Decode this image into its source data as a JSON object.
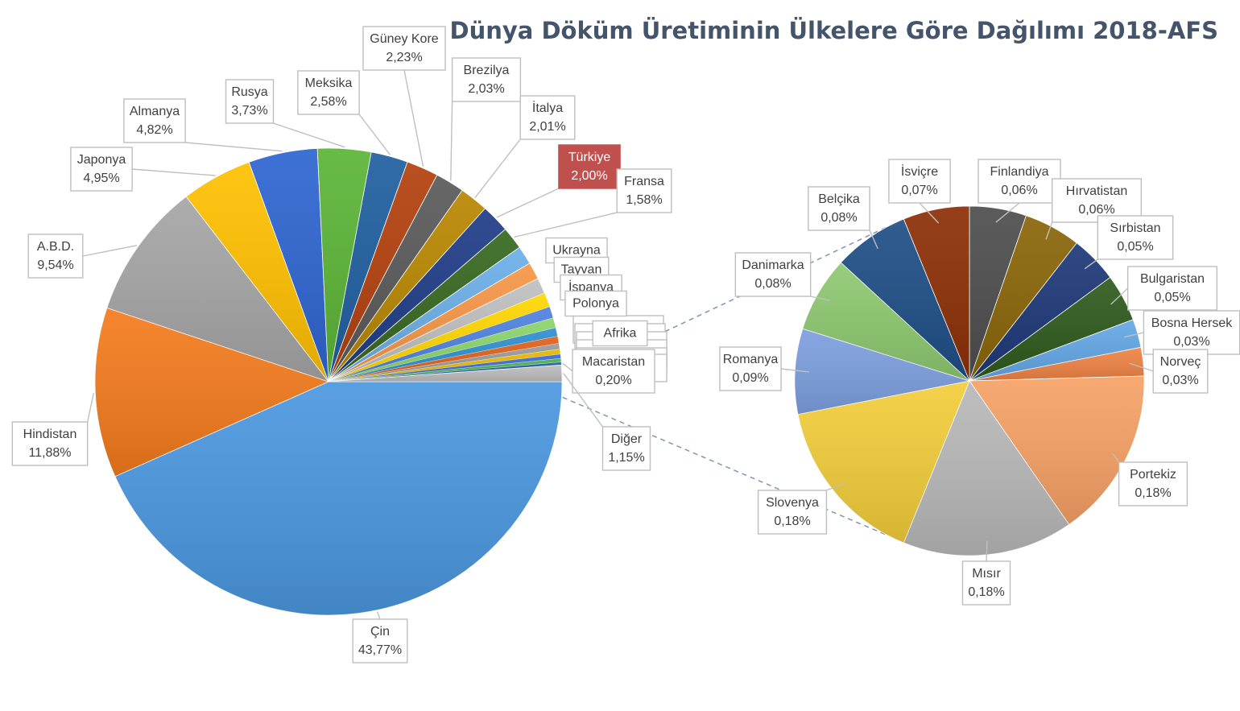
{
  "chart_data": {
    "type": "pie",
    "title": "Dünya Döküm Üretiminin Ülkelere Göre Dağılımı 2018-AFS",
    "main_pie": {
      "slices": [
        {
          "label": "Çin",
          "value_text": "43,77%",
          "value": 43.77,
          "color": "#4a97df",
          "label_side": "bottom"
        },
        {
          "label": "Hindistan",
          "value_text": "11,88%",
          "value": 11.88,
          "color": "#f47b1c",
          "label_side": "left"
        },
        {
          "label": "A.B.D.",
          "value_text": "9,54%",
          "value": 9.54,
          "color": "#a5a5a5",
          "label_side": "left"
        },
        {
          "label": "Japonya",
          "value_text": "4,95%",
          "value": 4.95,
          "color": "#ffc000",
          "label_side": "left"
        },
        {
          "label": "Almanya",
          "value_text": "4,82%",
          "value": 4.82,
          "color": "#2e65d1",
          "label_side": "top"
        },
        {
          "label": "Rusya",
          "value_text": "3,73%",
          "value": 3.73,
          "color": "#5bb436",
          "label_side": "top"
        },
        {
          "label": "Meksika",
          "value_text": "2,58%",
          "value": 2.58,
          "color": "#1f5fa0",
          "label_side": "top"
        },
        {
          "label": "Güney Kore",
          "value_text": "2,23%",
          "value": 2.23,
          "color": "#b3400d",
          "label_side": "top"
        },
        {
          "label": "Brezilya",
          "value_text": "2,03%",
          "value": 2.03,
          "color": "#595959",
          "label_side": "top"
        },
        {
          "label": "İtalya",
          "value_text": "2,01%",
          "value": 2.01,
          "color": "#b88600",
          "label_side": "top"
        },
        {
          "label": "Türkiye",
          "value_text": "2,00%",
          "value": 2.0,
          "color": "#1f3c88",
          "label_side": "top",
          "highlight": true
        },
        {
          "label": "Fransa",
          "value_text": "1,58%",
          "value": 1.58,
          "color": "#36681f",
          "label_side": "right"
        },
        {
          "label": "Ukrayna",
          "value_text": "",
          "value": 1.3,
          "color": "#6baee8",
          "label_side": "right"
        },
        {
          "label": "Tayvan",
          "value_text": "",
          "value": 1.2,
          "color": "#f79646",
          "label_side": "right"
        },
        {
          "label": "İspanya",
          "value_text": "",
          "value": 1.1,
          "color": "#bfbfbf",
          "label_side": "right"
        },
        {
          "label": "Polonya",
          "value_text": "",
          "value": 1.0,
          "color": "#ffd700",
          "label_side": "right"
        },
        {
          "label": "",
          "value_text": "",
          "value": 0.8,
          "color": "#4f81e0",
          "label_side": "right"
        },
        {
          "label": "Afrika",
          "value_text": "",
          "value": 0.7,
          "color": "#8cd46a",
          "label_side": "right"
        },
        {
          "label": "",
          "value_text": "",
          "value": 0.6,
          "color": "#2e8fd1",
          "label_side": "right"
        },
        {
          "label": "",
          "value_text": "",
          "value": 0.5,
          "color": "#e0601a",
          "label_side": "right"
        },
        {
          "label": "",
          "value_text": "",
          "value": 0.4,
          "color": "#999999",
          "label_side": "right"
        },
        {
          "label": "",
          "value_text": "",
          "value": 0.35,
          "color": "#e6b800",
          "label_side": "right"
        },
        {
          "label": "",
          "value_text": "",
          "value": 0.3,
          "color": "#3a6ad6",
          "label_side": "right"
        },
        {
          "label": "",
          "value_text": "",
          "value": 0.25,
          "color": "#4cae4c",
          "label_side": "right"
        },
        {
          "label": "Macaristan",
          "value_text": "0,20%",
          "value": 0.2,
          "color": "#1f5fa0",
          "label_side": "right"
        },
        {
          "label": "Diğer",
          "value_text": "1,15%",
          "value": 1.15,
          "color": "#bdbdbd",
          "label_side": "right"
        }
      ]
    },
    "secondary_pie": {
      "of_slice": "Diğer",
      "slices": [
        {
          "label": "Finlandiya",
          "value_text": "0,06%",
          "value": 0.06,
          "color": "#4d4d4d"
        },
        {
          "label": "Hırvatistan",
          "value_text": "0,06%",
          "value": 0.06,
          "color": "#8a6508"
        },
        {
          "label": "Sırbistan",
          "value_text": "0,05%",
          "value": 0.05,
          "color": "#1d3878"
        },
        {
          "label": "Bulgaristan",
          "value_text": "0,05%",
          "value": 0.05,
          "color": "#2f5a1d"
        },
        {
          "label": "Bosna Hersek",
          "value_text": "0,03%",
          "value": 0.03,
          "color": "#63a7e6"
        },
        {
          "label": "Norveç",
          "value_text": "0,03%",
          "value": 0.03,
          "color": "#ef8345"
        },
        {
          "label": "Portekiz",
          "value_text": "0,18%",
          "value": 0.18,
          "color": "#f6a165"
        },
        {
          "label": "Mısır",
          "value_text": "0,18%",
          "value": 0.18,
          "color": "#b8b8b8"
        },
        {
          "label": "Slovenya",
          "value_text": "0,18%",
          "value": 0.18,
          "color": "#f2cd3a"
        },
        {
          "label": "Romanya",
          "value_text": "0,09%",
          "value": 0.09,
          "color": "#7d9fdf"
        },
        {
          "label": "Danimarka",
          "value_text": "0,08%",
          "value": 0.08,
          "color": "#8dc870"
        },
        {
          "label": "Belçika",
          "value_text": "0,08%",
          "value": 0.08,
          "color": "#1e4e86"
        },
        {
          "label": "İsviçre",
          "value_text": "0,07%",
          "value": 0.07,
          "color": "#8c2f06"
        }
      ]
    },
    "legend": "none"
  }
}
